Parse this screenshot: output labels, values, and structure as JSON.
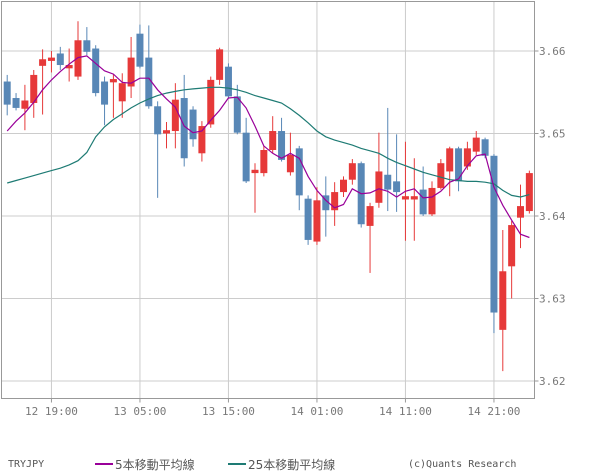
{
  "footer": {
    "symbol": "TRYJPY",
    "credit": "(c)Quants Research",
    "legend": [
      {
        "label": "5本移動平均線",
        "color": "#990099"
      },
      {
        "label": "25本移動平均線",
        "color": "#1e7b74"
      }
    ]
  },
  "chart_data": {
    "type": "candlestick",
    "title": "TRYJPY 1-hour candlestick chart with moving averages",
    "symbol": "TRYJPY",
    "interval": "1 hour",
    "grid": true,
    "legend_position": "bottom",
    "colors": {
      "up_candle": "#e63939",
      "down_candle": "#5887b6",
      "ma5": "#990099",
      "ma25": "#1e7b74",
      "grid": "#cccccc",
      "frame": "#999999",
      "axis_text": "#787878"
    },
    "y_axis": {
      "tick_labels": [
        "3.66",
        "3.65",
        "3.64",
        "3.63",
        "3.62"
      ],
      "tick_values": [
        3.66,
        3.65,
        3.64,
        3.63,
        3.62
      ],
      "top_value": 3.6661,
      "bottom_value": 3.6179
    },
    "x_axis": {
      "tick_labels": [
        "12 19:00",
        "13 05:00",
        "13 15:00",
        "14 01:00",
        "14 11:00",
        "14 21:00"
      ],
      "tick_candle_indices": [
        5,
        15,
        25,
        35,
        45,
        55
      ]
    },
    "candles": [
      {
        "t": "12 14:00",
        "o": 3.6563,
        "h": 3.6571,
        "l": 3.6522,
        "c": 3.6535
      },
      {
        "t": "12 15:00",
        "o": 3.6543,
        "h": 3.6549,
        "l": 3.6528,
        "c": 3.6531
      },
      {
        "t": "12 16:00",
        "o": 3.653,
        "h": 3.6559,
        "l": 3.6504,
        "c": 3.654
      },
      {
        "t": "12 17:00",
        "o": 3.6537,
        "h": 3.6577,
        "l": 3.6519,
        "c": 3.6571
      },
      {
        "t": "12 18:00",
        "o": 3.6582,
        "h": 3.6602,
        "l": 3.6523,
        "c": 3.659
      },
      {
        "t": "12 19:00",
        "o": 3.6588,
        "h": 3.66,
        "l": 3.6574,
        "c": 3.6592
      },
      {
        "t": "12 20:00",
        "o": 3.6597,
        "h": 3.6605,
        "l": 3.6577,
        "c": 3.6583
      },
      {
        "t": "12 21:00",
        "o": 3.6579,
        "h": 3.6603,
        "l": 3.6563,
        "c": 3.6583
      },
      {
        "t": "12 22:00",
        "o": 3.6569,
        "h": 3.6636,
        "l": 3.6565,
        "c": 3.6613
      },
      {
        "t": "12 23:00",
        "o": 3.6613,
        "h": 3.6629,
        "l": 3.6595,
        "c": 3.6599
      },
      {
        "t": "13 00:00",
        "o": 3.6603,
        "h": 3.6607,
        "l": 3.6545,
        "c": 3.6549
      },
      {
        "t": "13 01:00",
        "o": 3.6563,
        "h": 3.6569,
        "l": 3.651,
        "c": 3.6535
      },
      {
        "t": "13 02:00",
        "o": 3.6562,
        "h": 3.6572,
        "l": 3.6519,
        "c": 3.6566
      },
      {
        "t": "13 03:00",
        "o": 3.6539,
        "h": 3.6573,
        "l": 3.6519,
        "c": 3.6561
      },
      {
        "t": "13 04:00",
        "o": 3.6557,
        "h": 3.6617,
        "l": 3.6543,
        "c": 3.6592
      },
      {
        "t": "13 05:00",
        "o": 3.6621,
        "h": 3.6632,
        "l": 3.6579,
        "c": 3.6581
      },
      {
        "t": "13 06:00",
        "o": 3.6592,
        "h": 3.6631,
        "l": 3.653,
        "c": 3.6533
      },
      {
        "t": "13 07:00",
        "o": 3.6533,
        "h": 3.6539,
        "l": 3.6422,
        "c": 3.6499
      },
      {
        "t": "13 08:00",
        "o": 3.65,
        "h": 3.6514,
        "l": 3.6482,
        "c": 3.6504
      },
      {
        "t": "13 09:00",
        "o": 3.6503,
        "h": 3.6561,
        "l": 3.6482,
        "c": 3.6541
      },
      {
        "t": "13 10:00",
        "o": 3.6543,
        "h": 3.6571,
        "l": 3.646,
        "c": 3.647
      },
      {
        "t": "13 11:00",
        "o": 3.6529,
        "h": 3.6533,
        "l": 3.6484,
        "c": 3.6493
      },
      {
        "t": "13 12:00",
        "o": 3.6476,
        "h": 3.6515,
        "l": 3.6466,
        "c": 3.6509
      },
      {
        "t": "13 13:00",
        "o": 3.6511,
        "h": 3.6569,
        "l": 3.6507,
        "c": 3.6565
      },
      {
        "t": "13 14:00",
        "o": 3.6565,
        "h": 3.6604,
        "l": 3.6559,
        "c": 3.6602
      },
      {
        "t": "13 15:00",
        "o": 3.6581,
        "h": 3.6585,
        "l": 3.6543,
        "c": 3.6545
      },
      {
        "t": "13 16:00",
        "o": 3.6545,
        "h": 3.6559,
        "l": 3.6499,
        "c": 3.6501
      },
      {
        "t": "13 17:00",
        "o": 3.6501,
        "h": 3.6519,
        "l": 3.644,
        "c": 3.6442
      },
      {
        "t": "13 18:00",
        "o": 3.6452,
        "h": 3.6464,
        "l": 3.6404,
        "c": 3.6456
      },
      {
        "t": "13 19:00",
        "o": 3.6452,
        "h": 3.6485,
        "l": 3.6448,
        "c": 3.648
      },
      {
        "t": "13 20:00",
        "o": 3.648,
        "h": 3.6521,
        "l": 3.6476,
        "c": 3.6503
      },
      {
        "t": "13 21:00",
        "o": 3.6503,
        "h": 3.6519,
        "l": 3.6466,
        "c": 3.6468
      },
      {
        "t": "13 22:00",
        "o": 3.6453,
        "h": 3.6501,
        "l": 3.6449,
        "c": 3.6474
      },
      {
        "t": "13 23:00",
        "o": 3.6482,
        "h": 3.6485,
        "l": 3.6407,
        "c": 3.6425
      },
      {
        "t": "14 00:00",
        "o": 3.6421,
        "h": 3.6425,
        "l": 3.6365,
        "c": 3.6371
      },
      {
        "t": "14 01:00",
        "o": 3.6369,
        "h": 3.6435,
        "l": 3.6365,
        "c": 3.6419
      },
      {
        "t": "14 02:00",
        "o": 3.6425,
        "h": 3.6448,
        "l": 3.6375,
        "c": 3.6407
      },
      {
        "t": "14 03:00",
        "o": 3.6407,
        "h": 3.6441,
        "l": 3.6388,
        "c": 3.6429
      },
      {
        "t": "14 04:00",
        "o": 3.6429,
        "h": 3.6448,
        "l": 3.6423,
        "c": 3.6444
      },
      {
        "t": "14 05:00",
        "o": 3.6444,
        "h": 3.6469,
        "l": 3.6438,
        "c": 3.6464
      },
      {
        "t": "14 06:00",
        "o": 3.6464,
        "h": 3.6466,
        "l": 3.6386,
        "c": 3.639
      },
      {
        "t": "14 07:00",
        "o": 3.6388,
        "h": 3.6416,
        "l": 3.6331,
        "c": 3.6412
      },
      {
        "t": "14 08:00",
        "o": 3.6416,
        "h": 3.6501,
        "l": 3.641,
        "c": 3.6454
      },
      {
        "t": "14 09:00",
        "o": 3.645,
        "h": 3.6531,
        "l": 3.6406,
        "c": 3.6432
      },
      {
        "t": "14 10:00",
        "o": 3.6442,
        "h": 3.6499,
        "l": 3.6405,
        "c": 3.6429
      },
      {
        "t": "14 11:00",
        "o": 3.642,
        "h": 3.649,
        "l": 3.637,
        "c": 3.6424
      },
      {
        "t": "14 12:00",
        "o": 3.642,
        "h": 3.647,
        "l": 3.637,
        "c": 3.6424
      },
      {
        "t": "14 13:00",
        "o": 3.6432,
        "h": 3.646,
        "l": 3.64,
        "c": 3.6402
      },
      {
        "t": "14 14:00",
        "o": 3.6402,
        "h": 3.6442,
        "l": 3.64,
        "c": 3.6434
      },
      {
        "t": "14 15:00",
        "o": 3.6434,
        "h": 3.6469,
        "l": 3.6432,
        "c": 3.6464
      },
      {
        "t": "14 16:00",
        "o": 3.6454,
        "h": 3.6484,
        "l": 3.6424,
        "c": 3.6482
      },
      {
        "t": "14 17:00",
        "o": 3.6482,
        "h": 3.6484,
        "l": 3.643,
        "c": 3.6442
      },
      {
        "t": "14 18:00",
        "o": 3.646,
        "h": 3.649,
        "l": 3.6456,
        "c": 3.6482
      },
      {
        "t": "14 19:00",
        "o": 3.6478,
        "h": 3.6503,
        "l": 3.6474,
        "c": 3.6495
      },
      {
        "t": "14 20:00",
        "o": 3.6493,
        "h": 3.6495,
        "l": 3.647,
        "c": 3.6473
      },
      {
        "t": "14 21:00",
        "o": 3.6473,
        "h": 3.6475,
        "l": 3.6258,
        "c": 3.6283
      },
      {
        "t": "14 22:00",
        "o": 3.6262,
        "h": 3.6383,
        "l": 3.6212,
        "c": 3.6333
      },
      {
        "t": "14 23:00",
        "o": 3.6339,
        "h": 3.6394,
        "l": 3.63,
        "c": 3.6389
      },
      {
        "t": "15 00:00",
        "o": 3.6398,
        "h": 3.6438,
        "l": 3.6361,
        "c": 3.6412
      },
      {
        "t": "15 01:00",
        "o": 3.6406,
        "h": 3.6455,
        "l": 3.6403,
        "c": 3.6452
      }
    ],
    "series": [
      {
        "name": "5本移動平均線",
        "color": "#990099",
        "values": [
          3.6503,
          3.6515,
          3.6525,
          3.6538,
          3.6553,
          3.6565,
          3.6575,
          3.6584,
          3.6592,
          3.6594,
          3.6585,
          3.6576,
          3.6572,
          3.6562,
          3.6561,
          3.6567,
          3.6567,
          3.6553,
          3.6542,
          3.6532,
          3.6509,
          3.6501,
          3.6503,
          3.6516,
          3.6528,
          3.6543,
          3.6544,
          3.6531,
          3.6509,
          3.6485,
          3.6476,
          3.647,
          3.6476,
          3.647,
          3.6448,
          3.6431,
          3.6419,
          3.641,
          3.6414,
          3.6433,
          3.6427,
          3.6428,
          3.6433,
          3.643,
          3.6423,
          3.643,
          3.6433,
          3.6422,
          3.6423,
          3.643,
          3.6441,
          3.6445,
          3.6461,
          3.6473,
          3.6475,
          3.6435,
          3.6413,
          3.6395,
          3.6378,
          3.6374
        ]
      },
      {
        "name": "25本移動平均線",
        "color": "#1e7b74",
        "values": [
          3.644,
          3.6443,
          3.6446,
          3.6449,
          3.6452,
          3.6455,
          3.6458,
          3.6462,
          3.6467,
          3.6477,
          3.6496,
          3.6508,
          3.6517,
          3.6524,
          3.6531,
          3.6537,
          3.6542,
          3.6546,
          3.6549,
          3.6551,
          3.6553,
          3.6554,
          3.6555,
          3.6556,
          3.6556,
          3.6555,
          3.6553,
          3.655,
          3.6546,
          3.6543,
          3.654,
          3.6537,
          3.653,
          3.6522,
          3.6513,
          3.6503,
          3.6496,
          3.6492,
          3.6489,
          3.6486,
          3.6482,
          3.6479,
          3.6476,
          3.647,
          3.6465,
          3.6461,
          3.6457,
          3.6453,
          3.645,
          3.6447,
          3.6444,
          3.6443,
          3.6442,
          3.6442,
          3.6441,
          3.6439,
          3.6431,
          3.6425,
          3.6423,
          3.6426
        ]
      }
    ]
  }
}
